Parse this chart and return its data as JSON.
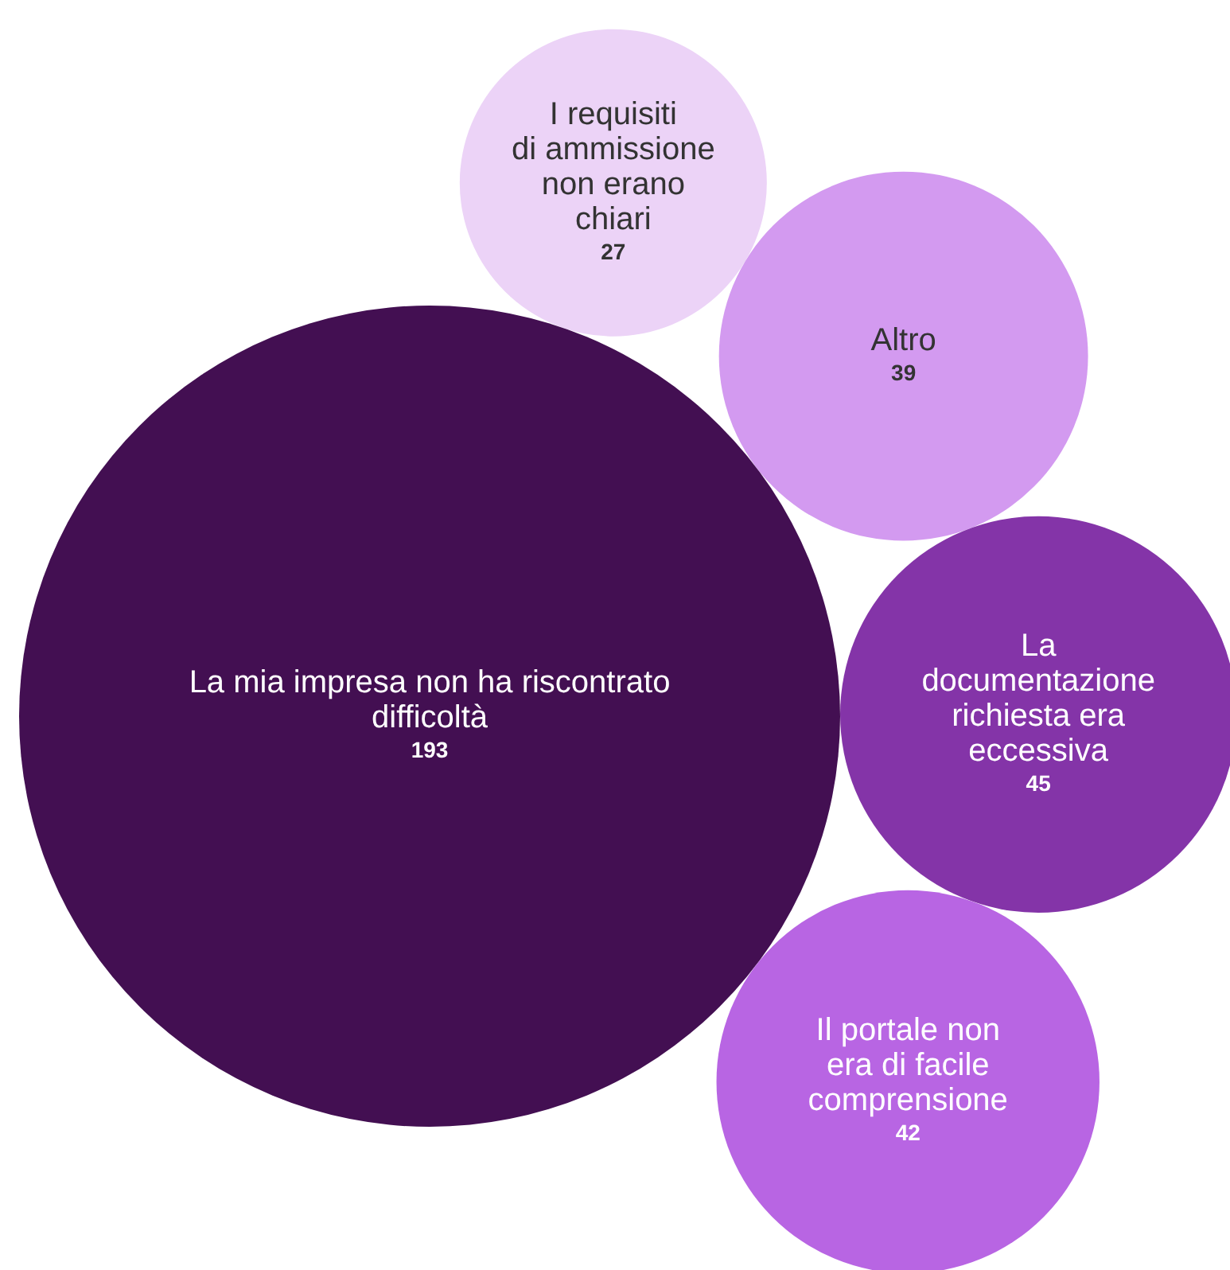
{
  "chart_data": {
    "type": "other",
    "categories": [
      "I requisiti di ammissione non erano chiari",
      "Altro",
      "La mia impresa non ha riscontrato difficoltà",
      "La documentazione richiesta era eccessiva",
      "Il portale non era di facile comprensione"
    ],
    "values": [
      27,
      39,
      193,
      45,
      42
    ],
    "colors": [
      "#ecd3f7",
      "#d39af0",
      "#430f52",
      "#8434a8",
      "#b865e3"
    ],
    "data_labels": true
  }
}
